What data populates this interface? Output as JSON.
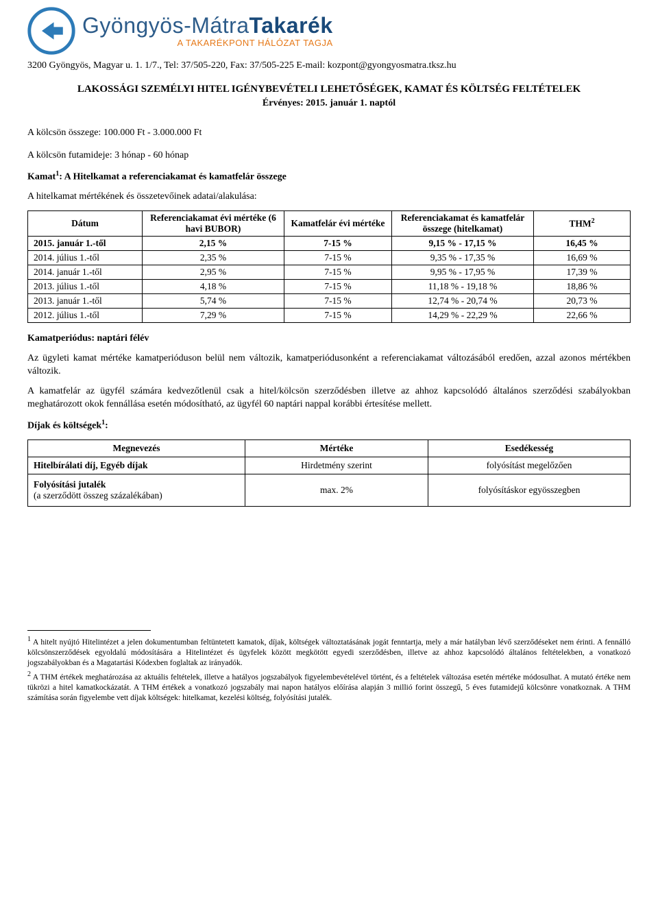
{
  "logo": {
    "main_text_1": "Gyöngyös-Mátra",
    "main_text_2": "Takarék",
    "sub_text": "A TAKARÉKPONT HÁLÓZAT TAGJA"
  },
  "header_line": "3200 Gyöngyös, Magyar u. 1. 1/7., Tel: 37/505-220, Fax: 37/505-225 E-mail: kozpont@gyongyosmatra.tksz.hu",
  "title": "LAKOSSÁGI SZEMÉLYI HITEL IGÉNYBEVÉTELI LEHETŐSÉGEK, KAMAT ÉS KÖLTSÉG FELTÉTELEK",
  "subtitle": "Érvényes: 2015. január 1. naptól",
  "loan_amount_label": "A kölcsön összege: 100.000 Ft - 3.000.000 Ft",
  "loan_term_label": "A kölcsön futamideje: 3 hónap - 60 hónap",
  "kamat_label_pre": "Kamat",
  "kamat_label_sup": "1",
  "kamat_label_post": ": A Hitelkamat a referenciakamat és kamatfelár összege",
  "components_label": "A hitelkamat mértékének és összetevőinek adatai/alakulása:",
  "rates_table": {
    "headers": {
      "col1": "Dátum",
      "col2": "Referenciakamat évi mértéke (6 havi BUBOR)",
      "col3": "Kamatfelár évi mértéke",
      "col4": "Referenciakamat és kamatfelár összege (hitelkamat)",
      "col5_pre": "THM",
      "col5_sup": "2"
    },
    "rows": [
      {
        "c1": "2015. január 1.-től",
        "c2": "2,15 %",
        "c3": "7-15 %",
        "c4": "9,15 % - 17,15 %",
        "c5": "16,45 %",
        "bold": true
      },
      {
        "c1": "2014. július 1.-től",
        "c2": "2,35 %",
        "c3": "7-15 %",
        "c4": "9,35 % - 17,35 %",
        "c5": "16,69 %",
        "bold": false
      },
      {
        "c1": "2014. január 1.-től",
        "c2": "2,95 %",
        "c3": "7-15 %",
        "c4": "9,95 % - 17,95 %",
        "c5": "17,39 %",
        "bold": false
      },
      {
        "c1": "2013. július 1.-től",
        "c2": "4,18 %",
        "c3": "7-15 %",
        "c4": "11,18 % - 19,18 %",
        "c5": "18,86 %",
        "bold": false
      },
      {
        "c1": "2013. január 1.-től",
        "c2": "5,74 %",
        "c3": "7-15 %",
        "c4": "12,74 % - 20,74 %",
        "c5": "20,73 %",
        "bold": false
      },
      {
        "c1": "2012. július 1.-től",
        "c2": "7,29 %",
        "c3": "7-15 %",
        "c4": "14,29 % - 22,29 %",
        "c5": "22,66 %",
        "bold": false
      }
    ]
  },
  "period_label": "Kamatperiódus: naptári félév",
  "para1": "Az ügyleti kamat mértéke kamatperióduson belül nem változik, kamatperiódusonként a referenciakamat változásából eredően, azzal azonos mértékben változik.",
  "para2": "A kamatfelár az ügyfél számára kedvezőtlenül csak a hitel/kölcsön szerződésben illetve az ahhoz kapcsolódó általános szerződési szabályokban meghatározott okok fennállása esetén módosítható, az ügyfél 60 naptári nappal korábbi értesítése mellett.",
  "fees_title_pre": "Díjak és költségek",
  "fees_title_sup": "1",
  "fees_title_post": ":",
  "fees_table": {
    "headers": {
      "c1": "Megnevezés",
      "c2": "Mértéke",
      "c3": "Esedékesség"
    },
    "row1": {
      "c1": "Hitelbírálati díj, Egyéb díjak",
      "c2": "Hirdetmény szerint",
      "c3": "folyósítást megelőzően"
    },
    "row2": {
      "c1": "Folyósítási jutalék",
      "c1_sub": "(a szerződött összeg százalékában)",
      "c2": "max. 2%",
      "c3": "folyósításkor egyösszegben"
    }
  },
  "footnote1_pre": "1",
  "footnote1": " A hitelt nyújtó Hitelintézet a jelen dokumentumban feltüntetett kamatok, díjak, költségek változtatásának jogát fenntartja, mely a már hatályban lévő szerződéseket nem érinti. A fennálló kölcsönszerződések egyoldalú módosítására a Hitelintézet és ügyfelek között megkötött egyedi szerződésben, illetve az ahhoz kapcsolódó általános feltételekben, a vonatkozó jogszabályokban és a Magatartási Kódexben foglaltak az irányadók.",
  "footnote2_pre": "2",
  "footnote2": " A THM értékek meghatározása az aktuális feltételek, illetve a hatályos jogszabályok figyelembevételével történt, és a feltételek változása esetén mértéke módosulhat. A mutató értéke nem tükrözi a hitel kamatkockázatát. A THM értékek a vonatkozó jogszabály mai napon hatályos előírása alapján 3 millió forint összegű, 5 éves futamidejű kölcsönre vonatkoznak. A THM számítása során figyelembe vett díjak költségek: hitelkamat, kezelési költség, folyósítási jutalék."
}
